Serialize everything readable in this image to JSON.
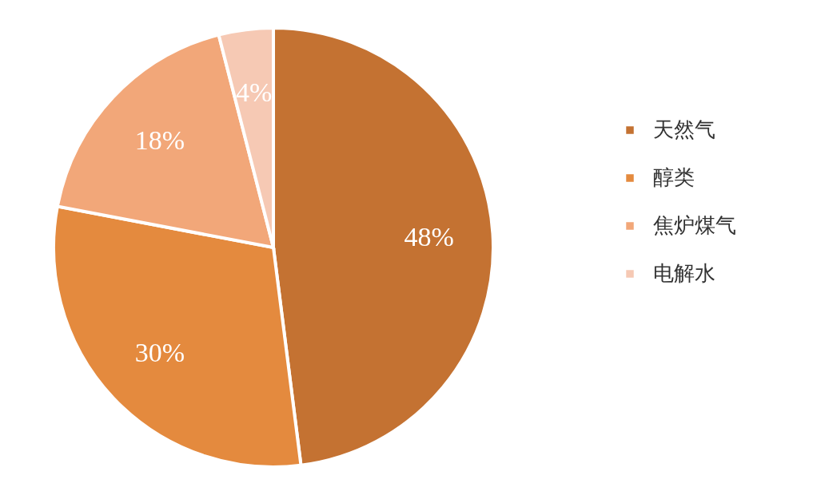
{
  "chart_data": {
    "type": "pie",
    "categories": [
      "天然气",
      "醇类",
      "焦炉煤气",
      "电解水"
    ],
    "values": [
      48,
      30,
      18,
      4
    ],
    "colors": [
      "#c47232",
      "#e48a3e",
      "#f2a779",
      "#f6c9b4"
    ],
    "value_labels": [
      "48%",
      "30%",
      "18%",
      "4%"
    ],
    "legend": "right"
  }
}
